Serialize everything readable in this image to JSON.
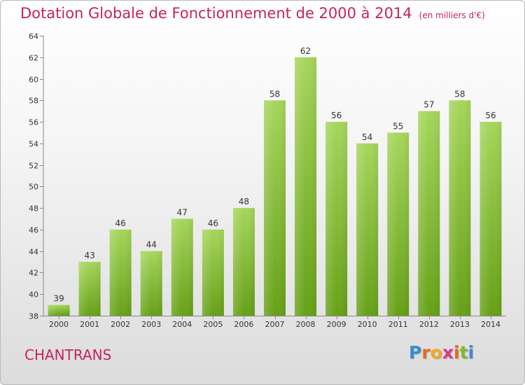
{
  "header": {
    "title": "Dotation Globale de Fonctionnement de 2000 à 2014",
    "subtitle": "(en milliers d'€)"
  },
  "footer": {
    "commune": "CHANTRANS",
    "brand": "Proxiti"
  },
  "colors": {
    "bar_light": "#a6d65c",
    "bar_dark": "#66a017",
    "title": "#c4245e",
    "axis": "#888888"
  },
  "chart_data": {
    "type": "bar",
    "title": "Dotation Globale de Fonctionnement de 2000 à 2014",
    "subtitle": "(en milliers d'€)",
    "categories": [
      "2000",
      "2001",
      "2002",
      "2003",
      "2004",
      "2005",
      "2006",
      "2007",
      "2008",
      "2009",
      "2010",
      "2011",
      "2012",
      "2013",
      "2014"
    ],
    "values": [
      39,
      43,
      46,
      44,
      47,
      46,
      48,
      58,
      62,
      56,
      54,
      55,
      57,
      58,
      56
    ],
    "ylim": [
      38,
      64
    ],
    "yticks": [
      38,
      40,
      42,
      44,
      46,
      48,
      50,
      52,
      54,
      56,
      58,
      60,
      62,
      64
    ],
    "grid": false,
    "legend": "none",
    "data_labels": true
  }
}
